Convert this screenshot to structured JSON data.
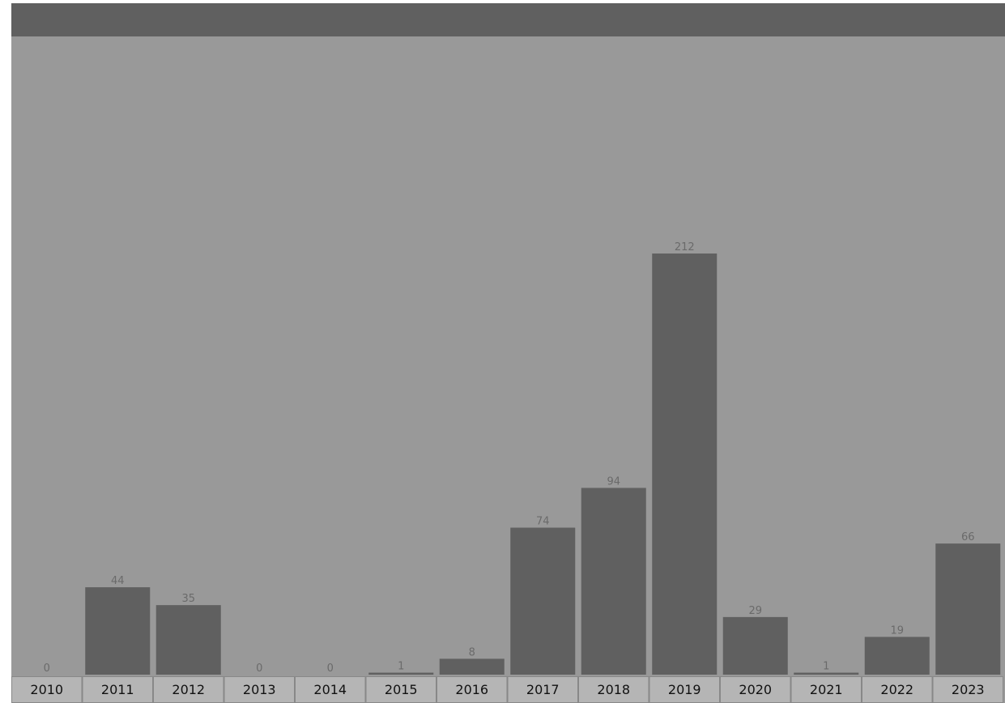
{
  "colors": {
    "background": "#999999",
    "header_bar": "#606060",
    "bar": "#606060",
    "axis_cell": "#b5b5b5",
    "value_label": "#6a6a6a"
  },
  "chart_data": {
    "type": "bar",
    "categories": [
      "2010",
      "2011",
      "2012",
      "2013",
      "2014",
      "2015",
      "2016",
      "2017",
      "2018",
      "2019",
      "2020",
      "2021",
      "2022",
      "2023"
    ],
    "values": [
      0,
      44,
      35,
      0,
      0,
      1,
      8,
      74,
      94,
      212,
      29,
      1,
      19,
      66
    ],
    "title": "",
    "xlabel": "",
    "ylabel": "",
    "ylim": [
      0,
      212
    ],
    "grid": false,
    "legend": "none",
    "data_labels": true
  }
}
